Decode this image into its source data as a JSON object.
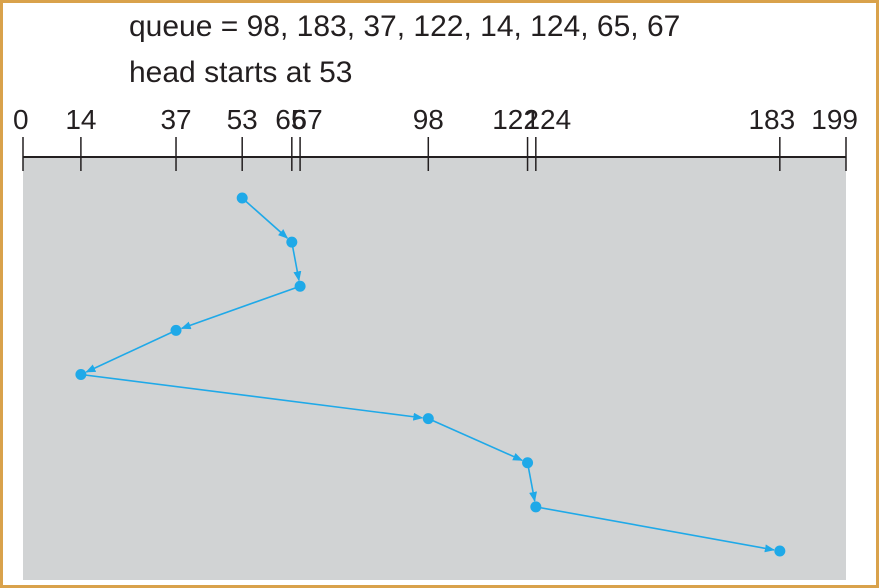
{
  "header": {
    "queue_text": "queue = 98, 183, 37, 122, 14, 124, 65, 67",
    "head_text": "head starts at 53"
  },
  "colors": {
    "frame": "#d9a24b",
    "plot_bg": "#d1d3d4",
    "path": "#1fa9e8",
    "axis": "#231f20"
  },
  "axis": {
    "min": 0,
    "max": 199,
    "ticks": [
      0,
      14,
      37,
      53,
      65,
      67,
      98,
      122,
      124,
      183,
      199
    ],
    "tick_labels": [
      "0",
      "14",
      "37",
      "53",
      "65",
      "67",
      "98",
      "122",
      "124",
      "183",
      "199"
    ]
  },
  "chart_data": {
    "type": "line",
    "head_start": 53,
    "service_order": [
      53,
      65,
      67,
      37,
      14,
      98,
      122,
      124,
      183
    ]
  }
}
